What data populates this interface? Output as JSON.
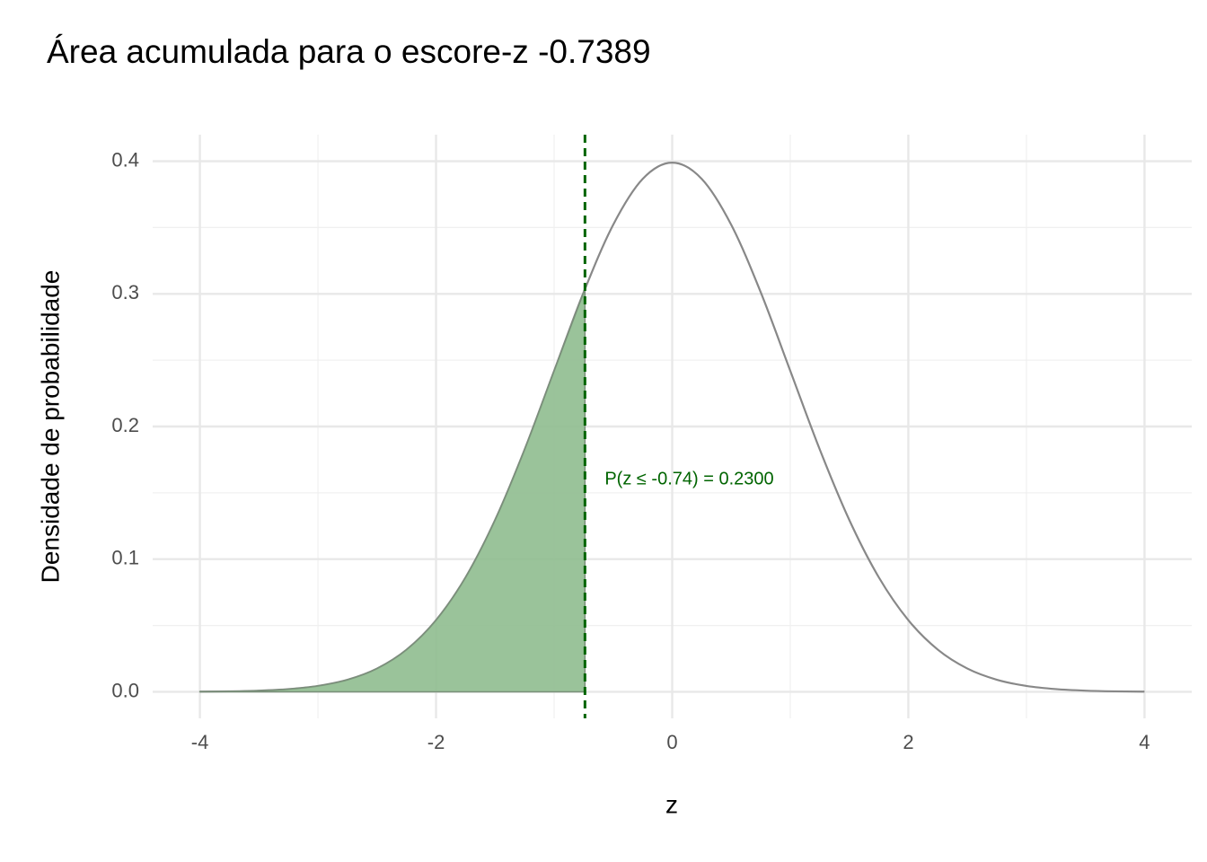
{
  "chart_data": {
    "type": "line",
    "title": "Área acumulada para o escore-z -0.7389",
    "x_label": "z",
    "y_label": "Densidade de probabilidade",
    "annotation": "P(z ≤ -0.74) = 0.2300",
    "annotation_color": "#006400",
    "vline": -0.7389,
    "vline_color": "#006400",
    "xlim": [
      -4.4,
      4.4
    ],
    "ylim": [
      -0.02,
      0.42
    ],
    "xticks": [
      -4,
      -2,
      0,
      2,
      4
    ],
    "yticks": [
      {
        "value": 0,
        "label": "0.0"
      },
      0.1,
      0.2,
      0.3,
      0.4
    ],
    "xminorticks": [
      -3,
      -1,
      1,
      3
    ],
    "yminorticks": [
      0.05,
      0.15,
      0.25,
      0.35
    ],
    "grid": true,
    "series": [
      {
        "color": "#888888",
        "x": [
          -4,
          -3.75,
          -3.5,
          -3.25,
          -3,
          -2.75,
          -2.5,
          -2.25,
          -2,
          -1.75,
          -1.5,
          -1.25,
          -1,
          -0.75,
          -0.5,
          -0.25,
          0,
          0.25,
          0.5,
          0.75,
          1,
          1.25,
          1.5,
          1.75,
          2,
          2.25,
          2.5,
          2.75,
          3,
          3.25,
          3.5,
          3.75,
          4
        ],
        "values": [
          0.000134,
          0.000353,
          0.000873,
          0.002029,
          0.004432,
          0.009094,
          0.017528,
          0.03174,
          0.053991,
          0.086277,
          0.129518,
          0.182649,
          0.241971,
          0.301137,
          0.352065,
          0.386668,
          0.398942,
          0.386668,
          0.352065,
          0.301137,
          0.241971,
          0.182649,
          0.129518,
          0.086277,
          0.053991,
          0.03174,
          0.017528,
          0.009094,
          0.004432,
          0.002029,
          0.000873,
          0.000353,
          0.000134
        ]
      },
      {
        "color": "#8fbc8f",
        "fill": true,
        "x": [
          -4,
          -3.75,
          -3.5,
          -3.25,
          -3,
          -2.75,
          -2.5,
          -2.25,
          -2,
          -1.75,
          -1.5,
          -1.25,
          -1,
          -0.75,
          -0.7389
        ],
        "values": [
          0.000134,
          0.000353,
          0.000873,
          0.002029,
          0.004432,
          0.009094,
          0.017528,
          0.03174,
          0.053991,
          0.086277,
          0.129518,
          0.182649,
          0.241971,
          0.301137,
          0.3036
        ]
      }
    ]
  }
}
